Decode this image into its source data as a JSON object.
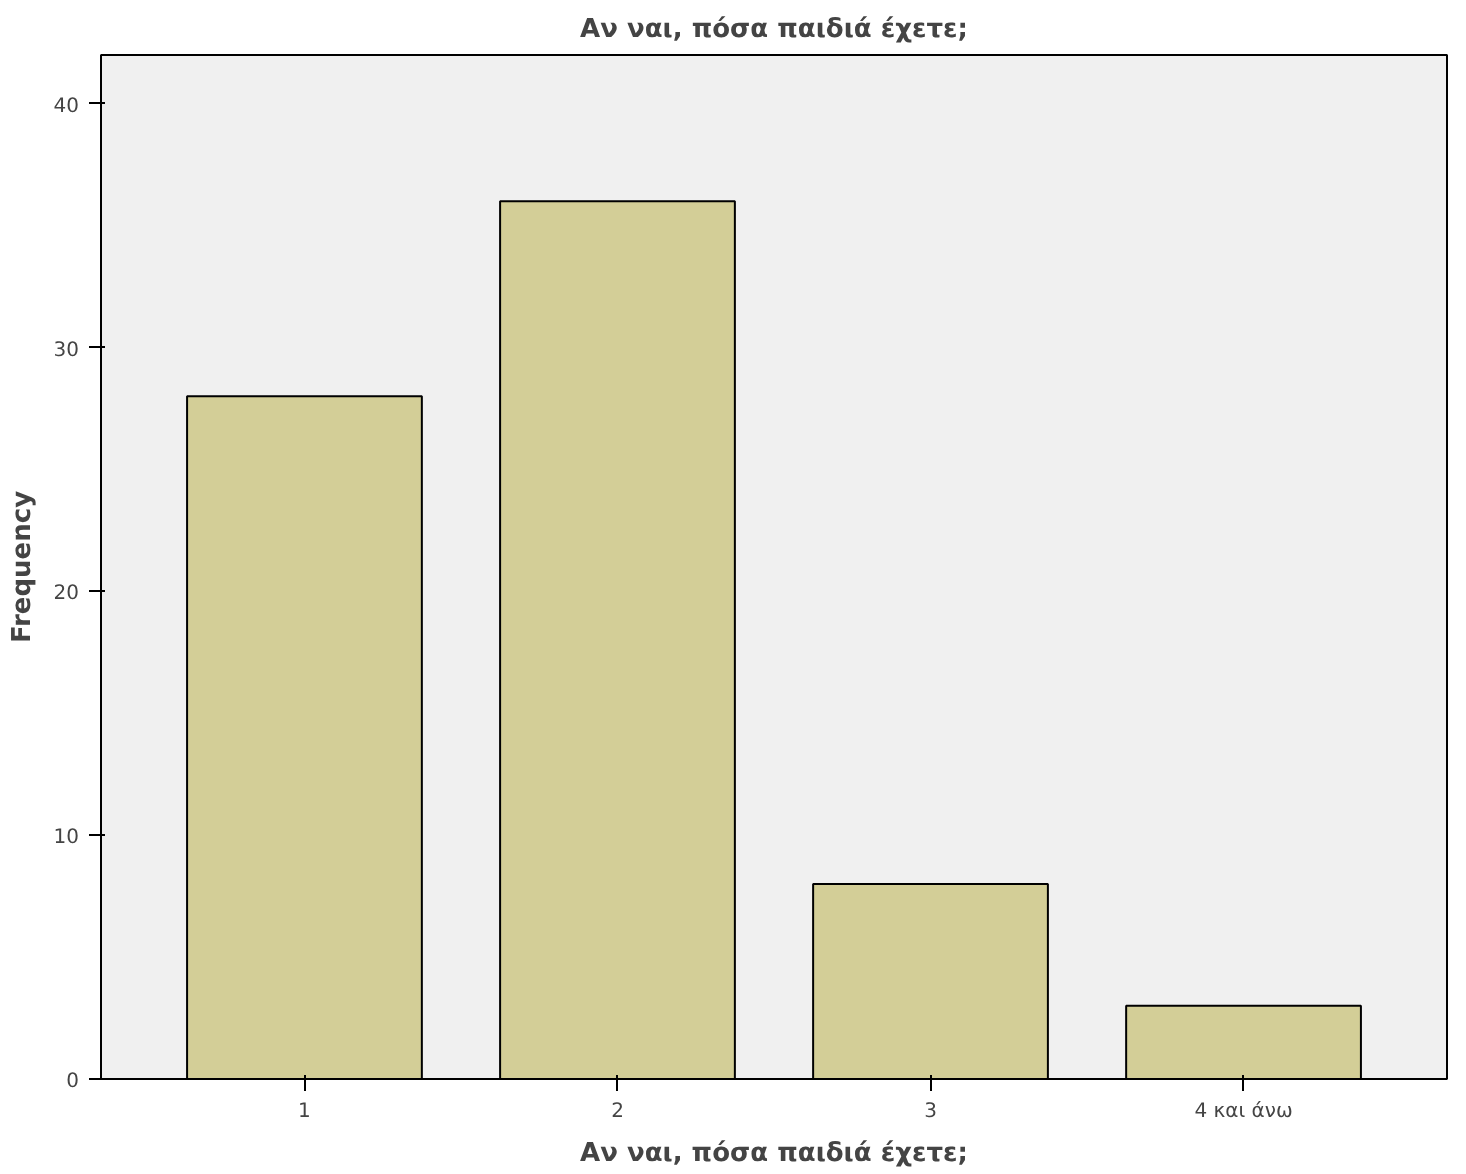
{
  "chart_data": {
    "type": "bar",
    "title": "Αν ναι, πόσα παιδιά έχετε;",
    "xlabel": "Αν ναι, πόσα παιδιά έχετε;",
    "ylabel": "Frequency",
    "categories": [
      "1",
      "2",
      "3",
      "4 και άνω"
    ],
    "values": [
      28,
      36,
      8,
      3
    ],
    "color": "#d3ce97",
    "ylim": [
      0,
      42
    ],
    "yticks": [
      0,
      10,
      20,
      30,
      40
    ],
    "grid": false
  }
}
